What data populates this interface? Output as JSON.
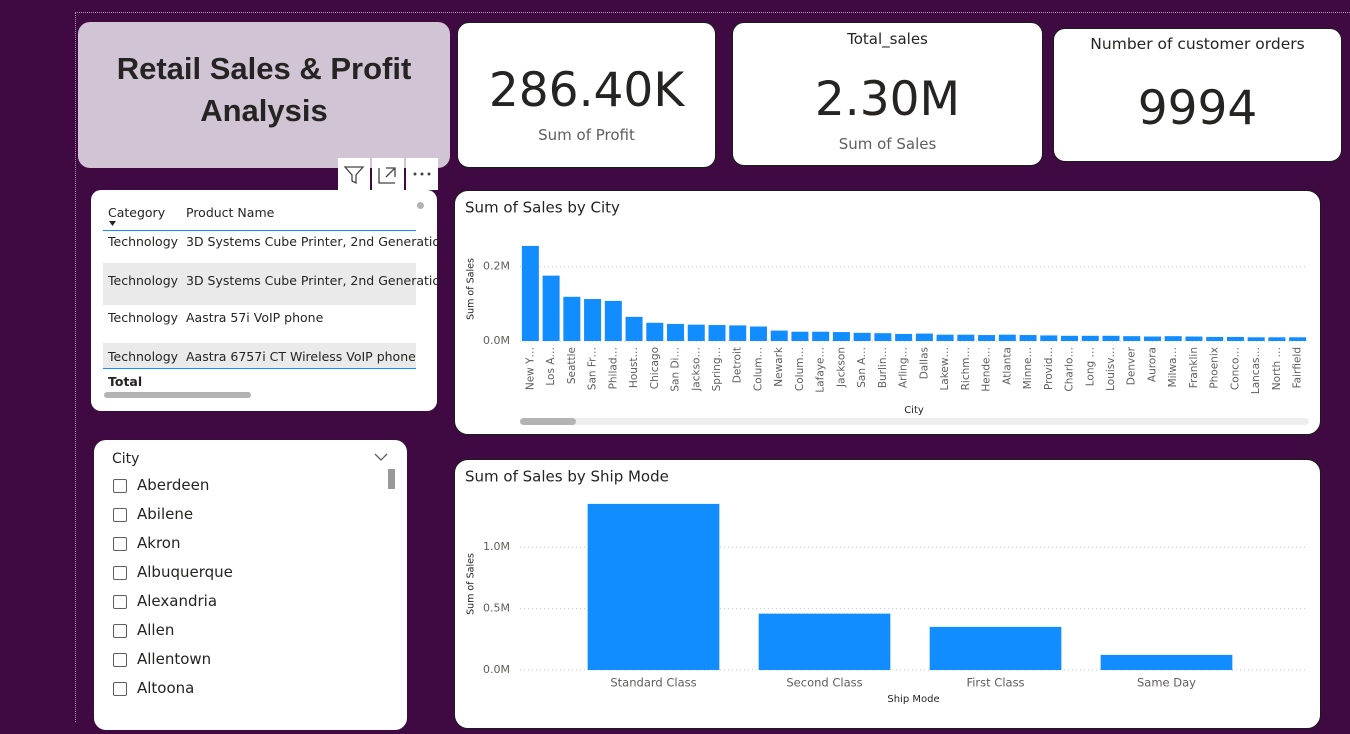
{
  "header": {
    "title": "Retail Sales & Profit Analysis"
  },
  "cards": [
    {
      "value": "286.40K",
      "label": "Sum of Profit"
    },
    {
      "title": "Total_sales",
      "value": "2.30M",
      "label": "Sum of Sales"
    },
    {
      "title": "Number of customer orders",
      "value": "9994"
    }
  ],
  "table": {
    "columns": [
      "Category",
      "Product Name"
    ],
    "rows": [
      [
        "Technology",
        "3D Systems Cube Printer, 2nd Generatio"
      ],
      [
        "Technology",
        "3D Systems Cube Printer, 2nd Generatio"
      ],
      [
        "Technology",
        "Aastra 57i VoIP phone"
      ],
      [
        "Technology",
        "Aastra 6757i CT Wireless VoIP phone"
      ]
    ],
    "total": "Total"
  },
  "slicer": {
    "title": "City",
    "items": [
      "Aberdeen",
      "Abilene",
      "Akron",
      "Albuquerque",
      "Alexandria",
      "Allen",
      "Allentown",
      "Altoona"
    ]
  },
  "chart_data": [
    {
      "type": "bar",
      "title": "Sum of Sales by City",
      "x_label": "City",
      "y_label": "Sum of Sales",
      "color": "#118dff",
      "grid": true,
      "categories": [
        "New Y…",
        "Los A…",
        "Seattle",
        "San Fr…",
        "Philad…",
        "Houst…",
        "Chicago",
        "San Di…",
        "Jackso…",
        "Spring…",
        "Detroit",
        "Colum…",
        "Newark",
        "Colum…",
        "Lafaye…",
        "Jackson",
        "San A…",
        "Burlin…",
        "Arling…",
        "Dallas",
        "Lakew…",
        "Richm…",
        "Hende…",
        "Atlanta",
        "Minne…",
        "Provid…",
        "Charlo…",
        "Long …",
        "Louisv…",
        "Denver",
        "Aurora",
        "Milwa…",
        "Franklin",
        "Phoenix",
        "Conco…",
        "Lancas…",
        "North …",
        "Fairfield"
      ],
      "values": [
        256000,
        176000,
        119000,
        113000,
        108000,
        65000,
        49000,
        46000,
        44000,
        43000,
        42000,
        39000,
        28000,
        25000,
        25000,
        24000,
        22000,
        21000,
        19000,
        20000,
        17000,
        17000,
        16000,
        17000,
        16000,
        15000,
        14000,
        14000,
        14000,
        13000,
        12000,
        13000,
        12000,
        11000,
        11000,
        10000,
        10000,
        10000
      ],
      "ylim": [
        0,
        280000
      ],
      "yticks": [
        {
          "value": 0,
          "label": "0.0M"
        },
        {
          "value": 200000,
          "label": "0.2M"
        }
      ]
    },
    {
      "type": "bar",
      "title": "Sum of Sales by Ship Mode",
      "x_label": "Ship Mode",
      "y_label": "Sum of Sales",
      "color": "#118dff",
      "grid": true,
      "categories": [
        "Standard Class",
        "Second Class",
        "First Class",
        "Same Day"
      ],
      "values": [
        1352000,
        459000,
        351000,
        123000
      ],
      "ylim": [
        0,
        1400000
      ],
      "yticks": [
        {
          "value": 0,
          "label": "0.0M"
        },
        {
          "value": 500000,
          "label": "0.5M"
        },
        {
          "value": 1000000,
          "label": "1.0M"
        }
      ]
    }
  ]
}
